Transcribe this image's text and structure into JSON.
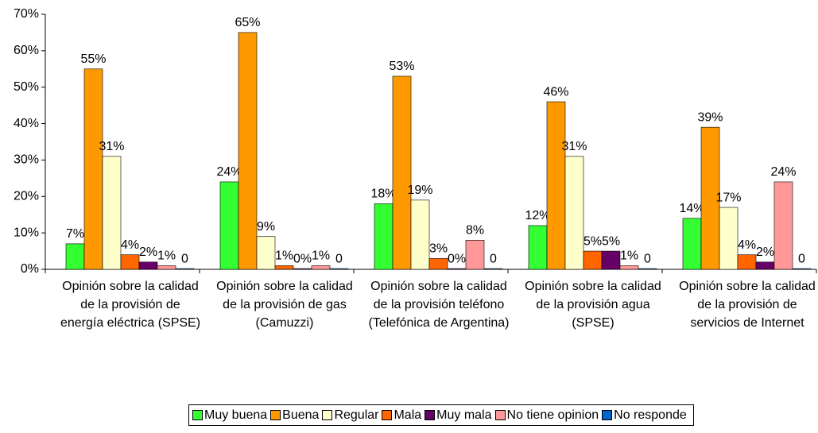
{
  "chart_data": {
    "type": "bar",
    "categories": [
      "Opinión sobre la calidad de la provisión de energía eléctrica (SPSE)",
      "Opinión sobre la calidad de la provisión de gas (Camuzzi)",
      "Opinión sobre la calidad de la provisión teléfono (Telefónica de Argentina)",
      "Opinión sobre la calidad de la provisión agua (SPSE)",
      "Opinión sobre la calidad de la provisión de servicios de Internet"
    ],
    "series": [
      {
        "name": "Muy buena",
        "color": "#33ff33",
        "values": [
          7,
          24,
          18,
          12,
          14
        ],
        "value_labels": [
          "7%",
          "24%",
          "18%",
          "12%",
          "14%"
        ]
      },
      {
        "name": "Buena",
        "color": "#ff9900",
        "values": [
          55,
          65,
          53,
          46,
          39
        ],
        "value_labels": [
          "55%",
          "65%",
          "53%",
          "46%",
          "39%"
        ]
      },
      {
        "name": "Regular",
        "color": "#ffffcc",
        "values": [
          31,
          9,
          19,
          31,
          17
        ],
        "value_labels": [
          "31%",
          "9%",
          "19%",
          "31%",
          "17%"
        ]
      },
      {
        "name": "Mala",
        "color": "#ff6600",
        "values": [
          4,
          1,
          3,
          5,
          4
        ],
        "value_labels": [
          "4%",
          "1%",
          "3%",
          "5%",
          "4%"
        ]
      },
      {
        "name": "Muy mala",
        "color": "#660066",
        "values": [
          2,
          0.2,
          0.2,
          5,
          2
        ],
        "value_labels": [
          "2%",
          "0%",
          "0%",
          "5%",
          "2%"
        ]
      },
      {
        "name": "No tiene opinion",
        "color": "#ff9999",
        "values": [
          1,
          1,
          8,
          1,
          24
        ],
        "value_labels": [
          "1%",
          "1%",
          "8%",
          "1%",
          "24%"
        ]
      },
      {
        "name": "No responde",
        "color": "#0066cc",
        "values": [
          0.2,
          0.2,
          0.2,
          0.2,
          0.2
        ],
        "value_labels": [
          "0",
          "0",
          "0",
          "0",
          "0"
        ]
      }
    ],
    "ylim": [
      0,
      70
    ],
    "yticks": [
      {
        "value": 0,
        "label": "0%"
      },
      {
        "value": 10,
        "label": "10%"
      },
      {
        "value": 20,
        "label": "20%"
      },
      {
        "value": 30,
        "label": "30%"
      },
      {
        "value": 40,
        "label": "40%"
      },
      {
        "value": 50,
        "label": "50%"
      },
      {
        "value": 60,
        "label": "60%"
      },
      {
        "value": 70,
        "label": "70%"
      }
    ],
    "legend": "bottom"
  }
}
